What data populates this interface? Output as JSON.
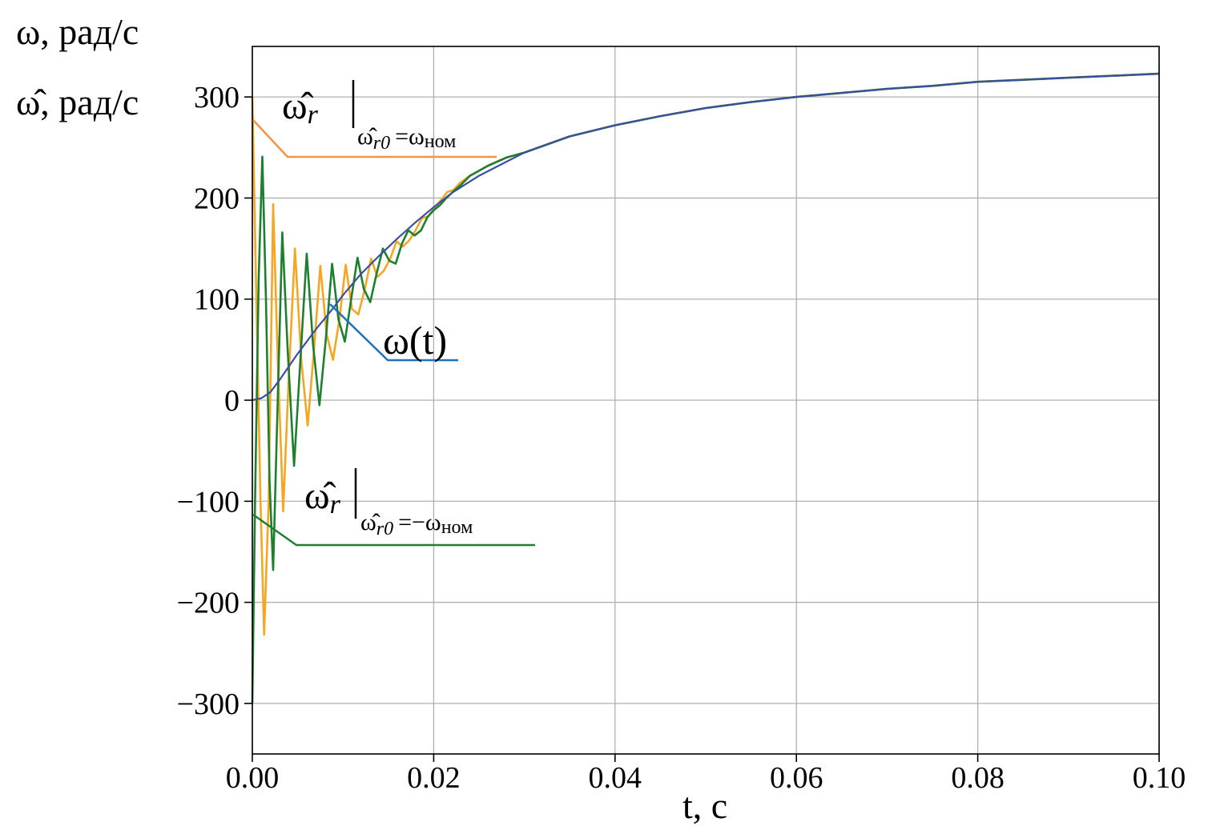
{
  "chart_data": {
    "type": "line",
    "xlabel": "t, с",
    "ylabel_lines": [
      "ω, рад/с",
      "ω̂, рад/с"
    ],
    "xlim": [
      0.0,
      0.1
    ],
    "ylim": [
      -350,
      350
    ],
    "grid": true,
    "x_ticks": [
      0.0,
      0.02,
      0.04,
      0.06,
      0.08,
      0.1
    ],
    "x_tick_labels": [
      "0.00",
      "0.02",
      "0.04",
      "0.06",
      "0.08",
      "0.10"
    ],
    "y_ticks": [
      -300,
      -200,
      -100,
      0,
      100,
      200,
      300
    ],
    "y_tick_labels": [
      "−300",
      "−200",
      "−100",
      "0",
      "100",
      "200",
      "300"
    ],
    "colors": {
      "omega": "#3b4fa0",
      "est_pos": "#f5a623",
      "est_neg": "#1e7f2e",
      "leader_pos": "#f0954a",
      "leader_omega": "#1f6fc0",
      "leader_neg": "#1e7f2e"
    },
    "series": [
      {
        "key": "omega",
        "points": [
          [
            0.0,
            0
          ],
          [
            0.001,
            2
          ],
          [
            0.002,
            8
          ],
          [
            0.003,
            20
          ],
          [
            0.004,
            33
          ],
          [
            0.005,
            46
          ],
          [
            0.006,
            58
          ],
          [
            0.007,
            70
          ],
          [
            0.008,
            81
          ],
          [
            0.009,
            92
          ],
          [
            0.01,
            104
          ],
          [
            0.012,
            125
          ],
          [
            0.014,
            143
          ],
          [
            0.016,
            160
          ],
          [
            0.018,
            176
          ],
          [
            0.02,
            191
          ],
          [
            0.022,
            205
          ],
          [
            0.025,
            222
          ],
          [
            0.03,
            245
          ],
          [
            0.035,
            261
          ],
          [
            0.04,
            272
          ],
          [
            0.045,
            281
          ],
          [
            0.05,
            289
          ],
          [
            0.055,
            295
          ],
          [
            0.06,
            300
          ],
          [
            0.065,
            304
          ],
          [
            0.07,
            308
          ],
          [
            0.075,
            311
          ],
          [
            0.08,
            315
          ],
          [
            0.085,
            317
          ],
          [
            0.09,
            319
          ],
          [
            0.095,
            321
          ],
          [
            0.1,
            323
          ]
        ]
      },
      {
        "key": "est_pos",
        "points": [
          [
            0.0,
            300
          ],
          [
            0.0004,
            120
          ],
          [
            0.0009,
            -100
          ],
          [
            0.0013,
            -232
          ],
          [
            0.0018,
            -100
          ],
          [
            0.0023,
            194
          ],
          [
            0.0028,
            40
          ],
          [
            0.0034,
            -110
          ],
          [
            0.004,
            20
          ],
          [
            0.0047,
            150
          ],
          [
            0.0054,
            40
          ],
          [
            0.0061,
            -25
          ],
          [
            0.0068,
            50
          ],
          [
            0.0075,
            133
          ],
          [
            0.0082,
            65
          ],
          [
            0.0089,
            40
          ],
          [
            0.0096,
            80
          ],
          [
            0.0103,
            134
          ],
          [
            0.011,
            90
          ],
          [
            0.0117,
            85
          ],
          [
            0.0124,
            110
          ],
          [
            0.0131,
            140
          ],
          [
            0.0138,
            122
          ],
          [
            0.0145,
            128
          ],
          [
            0.0152,
            140
          ],
          [
            0.0159,
            157
          ],
          [
            0.0166,
            152
          ],
          [
            0.0173,
            158
          ],
          [
            0.018,
            168
          ],
          [
            0.0187,
            180
          ],
          [
            0.0194,
            182
          ],
          [
            0.0201,
            190
          ],
          [
            0.0208,
            198
          ],
          [
            0.0215,
            206
          ],
          [
            0.0222,
            208
          ],
          [
            0.0229,
            215
          ],
          [
            0.024,
            222
          ],
          [
            0.026,
            232
          ],
          [
            0.028,
            240
          ],
          [
            0.03,
            245
          ],
          [
            0.035,
            261
          ],
          [
            0.04,
            272
          ],
          [
            0.045,
            281
          ],
          [
            0.05,
            289
          ],
          [
            0.055,
            295
          ],
          [
            0.06,
            300
          ],
          [
            0.065,
            304
          ],
          [
            0.07,
            308
          ],
          [
            0.075,
            311
          ],
          [
            0.08,
            315
          ],
          [
            0.085,
            317
          ],
          [
            0.09,
            319
          ],
          [
            0.095,
            321
          ],
          [
            0.1,
            323
          ]
        ]
      },
      {
        "key": "est_neg",
        "points": [
          [
            0.0,
            -300
          ],
          [
            0.0003,
            -100
          ],
          [
            0.0007,
            120
          ],
          [
            0.0011,
            241
          ],
          [
            0.0015,
            100
          ],
          [
            0.0019,
            -80
          ],
          [
            0.0023,
            -168
          ],
          [
            0.0028,
            0
          ],
          [
            0.0033,
            166
          ],
          [
            0.0039,
            50
          ],
          [
            0.0046,
            -65
          ],
          [
            0.0053,
            40
          ],
          [
            0.006,
            145
          ],
          [
            0.0067,
            55
          ],
          [
            0.0074,
            -5
          ],
          [
            0.0081,
            60
          ],
          [
            0.0088,
            135
          ],
          [
            0.0095,
            80
          ],
          [
            0.0102,
            58
          ],
          [
            0.0109,
            100
          ],
          [
            0.0116,
            141
          ],
          [
            0.0123,
            110
          ],
          [
            0.013,
            97
          ],
          [
            0.0137,
            125
          ],
          [
            0.0144,
            150
          ],
          [
            0.0151,
            138
          ],
          [
            0.0158,
            135
          ],
          [
            0.0165,
            155
          ],
          [
            0.0172,
            168
          ],
          [
            0.0179,
            163
          ],
          [
            0.0186,
            168
          ],
          [
            0.0193,
            181
          ],
          [
            0.02,
            188
          ],
          [
            0.0207,
            193
          ],
          [
            0.0214,
            200
          ],
          [
            0.0221,
            206
          ],
          [
            0.023,
            213
          ],
          [
            0.024,
            222
          ],
          [
            0.026,
            232
          ],
          [
            0.028,
            240
          ],
          [
            0.03,
            245
          ],
          [
            0.035,
            261
          ],
          [
            0.04,
            272
          ],
          [
            0.045,
            281
          ],
          [
            0.05,
            289
          ],
          [
            0.055,
            295
          ],
          [
            0.06,
            300
          ],
          [
            0.065,
            304
          ],
          [
            0.07,
            308
          ],
          [
            0.075,
            311
          ],
          [
            0.08,
            315
          ],
          [
            0.085,
            317
          ],
          [
            0.09,
            319
          ],
          [
            0.095,
            321
          ],
          [
            0.1,
            323
          ]
        ]
      }
    ],
    "annotations": [
      {
        "key": "est_pos_label",
        "base": "ω̂",
        "sub_r": "r",
        "cond_omega": "ω̂",
        "cond_sub": "r0",
        "cond_rest": "=ω",
        "cond_tail": "ном"
      },
      {
        "key": "omega_label",
        "text": "ω(t)"
      },
      {
        "key": "est_neg_label",
        "base": "ω̂",
        "sub_r": "r",
        "cond_omega": "ω̂",
        "cond_sub": "r0",
        "cond_rest": "=−ω",
        "cond_tail": "ном"
      }
    ]
  }
}
